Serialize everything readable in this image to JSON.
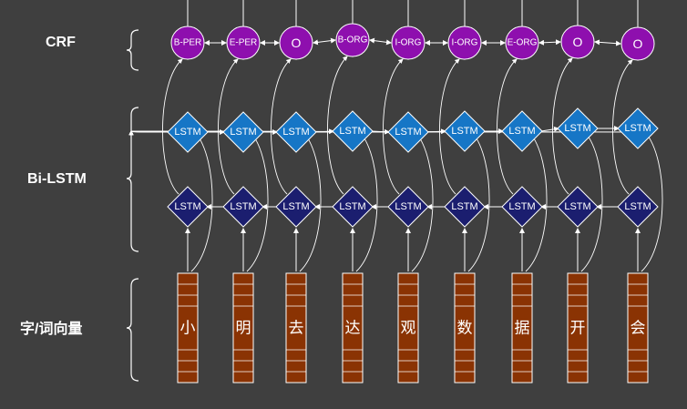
{
  "labels": {
    "crf": "CRF",
    "bilstm": "Bi-LSTM",
    "embedding": "字/词向量"
  },
  "lstm_label": "LSTM",
  "tokens": [
    "小",
    "明",
    "去",
    "达",
    "观",
    "数",
    "据",
    "开",
    "会"
  ],
  "tags": [
    "B-PER",
    "E-PER",
    "O",
    "B-ORG",
    "I-ORG",
    "I-ORG",
    "E-ORG",
    "O",
    "O"
  ],
  "colors": {
    "background": "#3f3f3f",
    "crf_node": "#8e0fae",
    "forward_lstm": "#1676c6",
    "backward_lstm": "#1b1e6f",
    "embedding_block": "#8a3303",
    "stroke": "#ffffff"
  }
}
